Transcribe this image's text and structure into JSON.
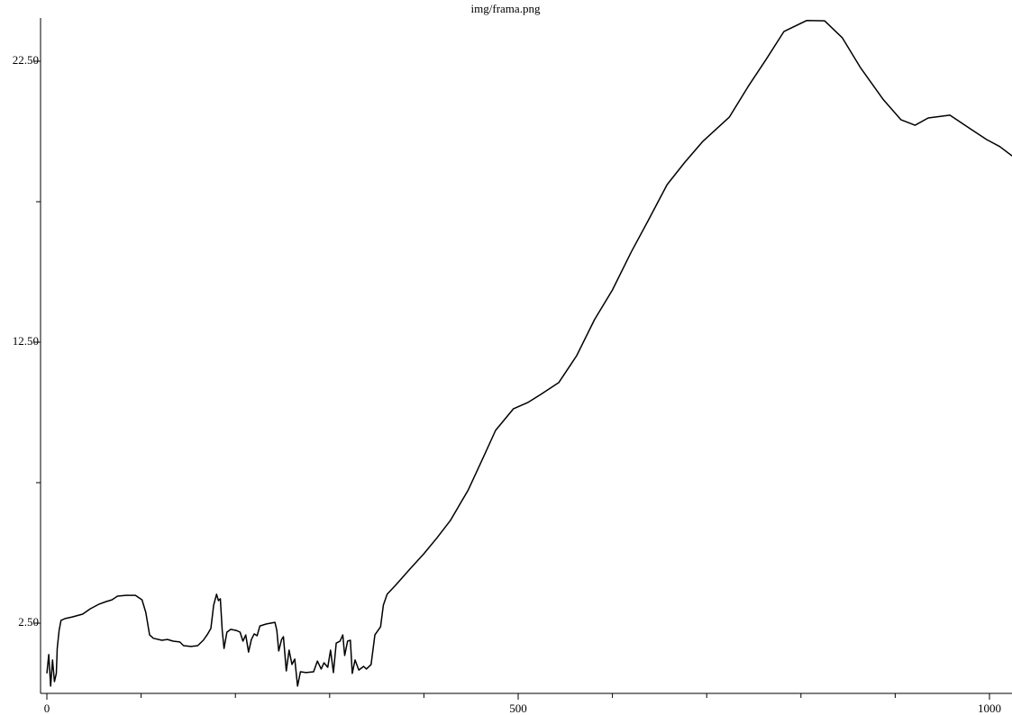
{
  "chart_data": {
    "type": "line",
    "title": "img/frama.png",
    "x": [
      0,
      2,
      4,
      6,
      8,
      10,
      11,
      13,
      15,
      19,
      27,
      38,
      46,
      55,
      63,
      69,
      75,
      84,
      94,
      101,
      105,
      109,
      113,
      122,
      128,
      134,
      141,
      145,
      153,
      160,
      166,
      170,
      174,
      177,
      180,
      182,
      184,
      186,
      188,
      191,
      195,
      201,
      205,
      208,
      211,
      214,
      217,
      220,
      223,
      226,
      233,
      242,
      244,
      246,
      249,
      251,
      254,
      257,
      260,
      263,
      266,
      269,
      275,
      283,
      287,
      291,
      294,
      298,
      301,
      304,
      307,
      311,
      314,
      316,
      319,
      322,
      324,
      327,
      331,
      336,
      339,
      344,
      348,
      354,
      357,
      361,
      370,
      385,
      400,
      414,
      428,
      447,
      462,
      476,
      495,
      510,
      524,
      543,
      562,
      581,
      600,
      620,
      638,
      658,
      677,
      696,
      724,
      744,
      763,
      782,
      806,
      825,
      844,
      863,
      887,
      906,
      921,
      935,
      958,
      978,
      997,
      1011,
      1024
    ],
    "series": [
      {
        "color": "#000000",
        "values": [
          0.71,
          1.38,
          0.26,
          1.19,
          0.42,
          0.71,
          1.6,
          2.24,
          2.6,
          2.66,
          2.72,
          2.82,
          3.01,
          3.17,
          3.27,
          3.33,
          3.46,
          3.49,
          3.49,
          3.33,
          2.88,
          2.08,
          1.96,
          1.89,
          1.92,
          1.86,
          1.83,
          1.7,
          1.67,
          1.7,
          1.89,
          2.08,
          2.31,
          3.14,
          3.53,
          3.3,
          3.37,
          2.24,
          1.6,
          2.18,
          2.28,
          2.24,
          2.18,
          1.86,
          2.08,
          1.47,
          1.92,
          2.12,
          2.05,
          2.4,
          2.47,
          2.53,
          2.24,
          1.51,
          1.92,
          2.02,
          0.8,
          1.54,
          1.03,
          1.22,
          0.26,
          0.77,
          0.74,
          0.77,
          1.15,
          0.87,
          1.09,
          0.93,
          1.54,
          0.74,
          1.79,
          1.86,
          2.08,
          1.35,
          1.86,
          1.89,
          0.71,
          1.19,
          0.83,
          0.96,
          0.87,
          1.03,
          2.08,
          2.37,
          3.14,
          3.53,
          3.85,
          4.42,
          4.97,
          5.54,
          6.15,
          7.24,
          8.33,
          9.36,
          10.13,
          10.35,
          10.64,
          11.06,
          12.02,
          13.3,
          14.36,
          15.71,
          16.83,
          18.11,
          18.91,
          19.65,
          20.51,
          21.6,
          22.56,
          23.56,
          23.95,
          23.94,
          23.33,
          22.28,
          21.15,
          20.42,
          20.22,
          20.48,
          20.58,
          20.13,
          19.71,
          19.46,
          19.13
        ]
      }
    ],
    "xlim": [
      0,
      1024
    ],
    "xticks": [
      0,
      500,
      1000
    ],
    "xminor_ticks": [
      100,
      200,
      300,
      400,
      600,
      700,
      800,
      900
    ],
    "ylim": [
      0,
      24
    ],
    "yticks": [
      {
        "value": 2.5,
        "label": "2.50"
      },
      {
        "value": 12.5,
        "label": "12.50"
      },
      {
        "value": 22.5,
        "label": "22.50"
      }
    ],
    "yminor_ticks": [
      7.5,
      17.5
    ]
  }
}
